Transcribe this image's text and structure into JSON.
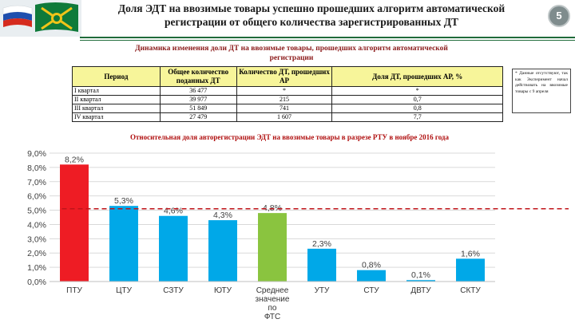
{
  "header": {
    "title_line1": "Доля ЭДТ на ввозимые товары успешно прошедших алгоритм автоматической",
    "title_line2": "регистрации от общего количества зарегистрированных ДТ",
    "page_number": "5"
  },
  "table": {
    "title_line1": "Динамика изменения доли ДТ на ввозимые товары, прошедших алгоритм автоматической",
    "title_line2": "регистрации",
    "columns": [
      "Период",
      "Общее количество поданных ДТ",
      "Количество ДТ, прошедших АР",
      "Доля ДТ, прошедших АР, %"
    ],
    "rows": [
      [
        "I квартал",
        "36 477",
        "*",
        "*"
      ],
      [
        "II квартал",
        "39 977",
        "215",
        "0,7"
      ],
      [
        "III квартал",
        "51 849",
        "741",
        "0,8"
      ],
      [
        "IV квартал",
        "27 479",
        "1 607",
        "7,7"
      ]
    ]
  },
  "note": "* Данные отсутствуют, так как Эксперимент начал действовать на ввозимые товары с 9 апреля",
  "chart_data": {
    "type": "bar",
    "title": "Относительная доля авторегистрации ЭДТ на ввозимые товары в разрезе РТУ в ноябре 2016 года",
    "categories": [
      "ПТУ",
      "ЦТУ",
      "СЗТУ",
      "ЮТУ",
      "Среднее значение по ФТС",
      "УТУ",
      "СТУ",
      "ДВТУ",
      "СКТУ"
    ],
    "values": [
      8.2,
      5.3,
      4.6,
      4.3,
      4.8,
      2.3,
      0.8,
      0.1,
      1.6
    ],
    "value_labels": [
      "8,2%",
      "5,3%",
      "4,6%",
      "4,3%",
      "4,8%",
      "2,3%",
      "0,8%",
      "0,1%",
      "1,6%"
    ],
    "yticks": [
      "0,0%",
      "1,0%",
      "2,0%",
      "3,0%",
      "4,0%",
      "5,0%",
      "6,0%",
      "7,0%",
      "8,0%",
      "9,0%"
    ],
    "ylim": [
      0,
      9
    ],
    "reference_line": 5.1,
    "grid": true,
    "colors": {
      "highlight": "#ee1c24",
      "default": "#00a8e8",
      "average": "#8ac43f",
      "reference": "#c0141a"
    }
  }
}
